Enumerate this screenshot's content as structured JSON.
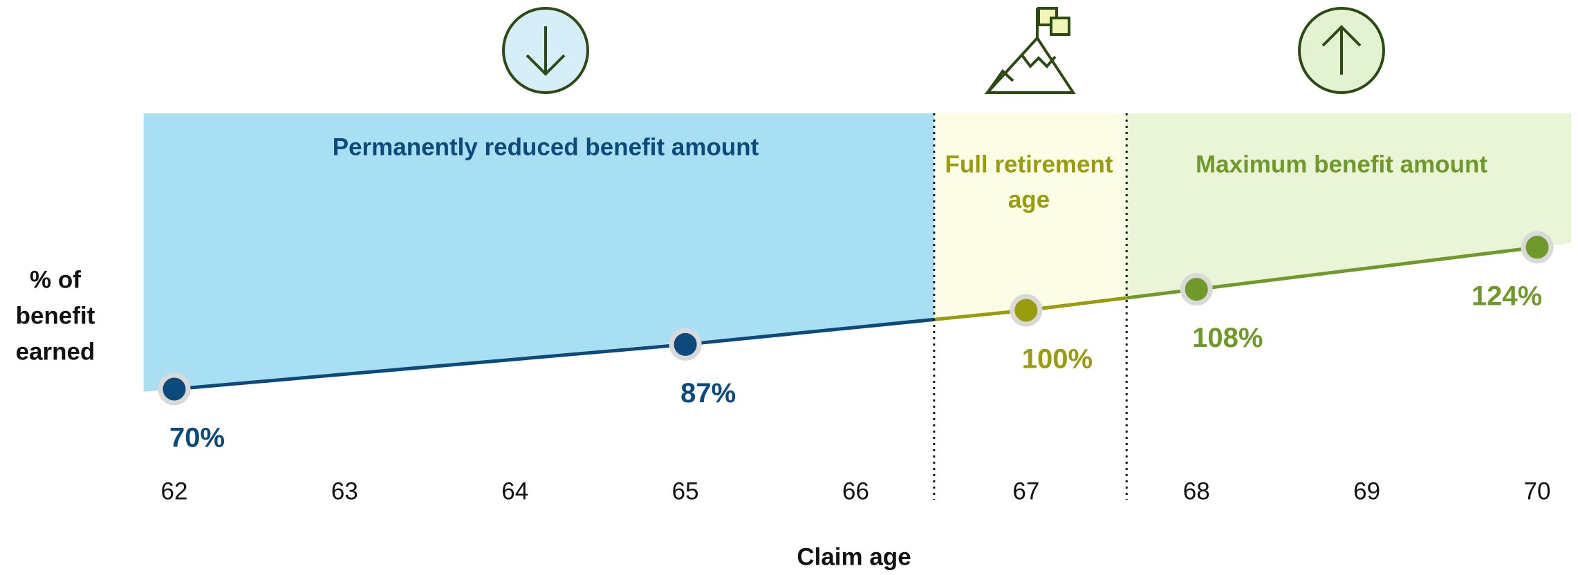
{
  "chart_data": {
    "type": "line",
    "x": [
      62,
      65,
      67,
      68,
      70
    ],
    "values": [
      70,
      87,
      100,
      108,
      124
    ],
    "value_labels": [
      "70%",
      "87%",
      "100%",
      "108%",
      "124%"
    ],
    "point_colors": [
      "#0b4a7a",
      "#0b4a7a",
      "#9a9c10",
      "#6f9a2a",
      "#6f9a2a"
    ],
    "xlim": [
      61.5,
      70.5
    ],
    "xticks": [
      62,
      63,
      64,
      65,
      66,
      67,
      68,
      69,
      70
    ],
    "ylim": [
      55,
      175
    ],
    "xlabel": "Claim age",
    "ylabel": [
      "% of",
      "benefit",
      "earned"
    ],
    "zones": [
      {
        "label": [
          "Permanently reduced benefit amount"
        ],
        "x_start": 61.82,
        "x_end": 66.46,
        "fill": "#a9dff2",
        "color": "#0b4a7a"
      },
      {
        "label": [
          "Full retirement",
          "age"
        ],
        "x_start": 66.46,
        "x_end": 67.59,
        "fill": "#fbfde6",
        "color": "#9a9c10"
      },
      {
        "label": [
          "Maximum benefit amount"
        ],
        "x_start": 67.59,
        "x_end": 70.2,
        "fill": "#eaf5d8",
        "color": "#6f9a2a"
      }
    ]
  }
}
